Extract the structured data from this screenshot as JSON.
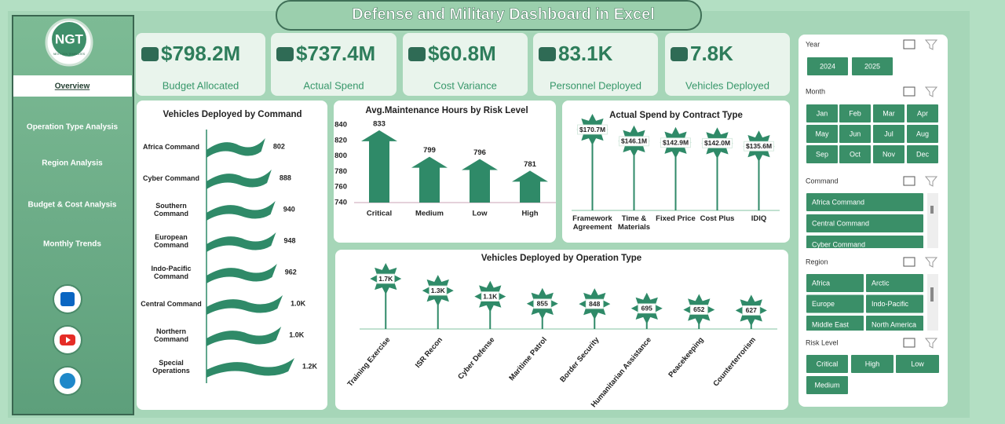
{
  "header": {
    "title": "Defense and Military Dashboard in Excel"
  },
  "sidebar": {
    "logo": "NGT",
    "logo_sub": "NEXT GEN TEMPLATES",
    "nav": [
      "Overview",
      "Operation Type Analysis",
      "Region Analysis",
      "Budget & Cost Analysis",
      "Monthly Trends"
    ]
  },
  "kpis": [
    {
      "value": "$798.2M",
      "label": "Budget Allocated"
    },
    {
      "value": "$737.4M",
      "label": "Actual Spend"
    },
    {
      "value": "$60.8M",
      "label": "Cost Variance"
    },
    {
      "value": "83.1K",
      "label": "Personnel Deployed"
    },
    {
      "value": "7.8K",
      "label": "Vehicles Deployed"
    }
  ],
  "slicers": [
    {
      "title": "Year",
      "items": [
        "2024",
        "2025"
      ]
    },
    {
      "title": "Month",
      "items": [
        "Jan",
        "Feb",
        "Mar",
        "Apr",
        "May",
        "Jun",
        "Jul",
        "Aug",
        "Sep",
        "Oct",
        "Nov",
        "Dec"
      ]
    },
    {
      "title": "Command",
      "items": [
        "Africa Command",
        "Central Command",
        "Cyber Command"
      ]
    },
    {
      "title": "Region",
      "items": [
        "Africa",
        "Arctic",
        "Europe",
        "Indo-Pacific",
        "Middle East",
        "North America"
      ]
    },
    {
      "title": "Risk Level",
      "items": [
        "Critical",
        "High",
        "Low",
        "Medium"
      ]
    }
  ],
  "chart_data": [
    {
      "type": "bar",
      "orientation": "horizontal",
      "title": "Vehicles Deployed by Command",
      "categories": [
        "Africa Command",
        "Cyber Command",
        "Southern Command",
        "European Command",
        "Indo-Pacific Command",
        "Central Command",
        "Northern Command",
        "Special Operations"
      ],
      "values": [
        802,
        888,
        940,
        948,
        962,
        1040,
        1020,
        1200
      ],
      "value_labels": [
        "802",
        "888",
        "940",
        "948",
        "962",
        "1.0K",
        "1.0K",
        "1.2K"
      ],
      "color": "#2f8a68"
    },
    {
      "type": "bar",
      "title": "Avg.Maintenance Hours by Risk Level",
      "categories": [
        "Critical",
        "Medium",
        "Low",
        "High"
      ],
      "values": [
        833,
        799,
        796,
        781
      ],
      "ylim": [
        740,
        840
      ],
      "yticks": [
        740,
        760,
        780,
        800,
        820,
        840
      ],
      "color": "#2f8a68"
    },
    {
      "type": "lollipop",
      "title": "Actual Spend by Contract Type",
      "categories": [
        "Framework Agreement",
        "Time & Materials",
        "Fixed Price",
        "Cost Plus",
        "IDIQ"
      ],
      "values": [
        170.7,
        146.1,
        142.9,
        142.0,
        135.6
      ],
      "value_labels": [
        "$170.7M",
        "$146.1M",
        "$142.9M",
        "$142.0M",
        "$135.6M"
      ],
      "color": "#2f8a68"
    },
    {
      "type": "lollipop",
      "title": "Vehicles Deployed by Operation Type",
      "categories": [
        "Training Exercise",
        "ISR Recon",
        "Cyber Defense",
        "Maritime Patrol",
        "Border Security",
        "Humanitarian Assistance",
        "Peacekeeping",
        "Counterterrorism"
      ],
      "values": [
        1700,
        1300,
        1100,
        855,
        848,
        695,
        652,
        627
      ],
      "value_labels": [
        "1.7K",
        "1.3K",
        "1.1K",
        "855",
        "848",
        "695",
        "652",
        "627"
      ],
      "color": "#2f8a68"
    }
  ]
}
